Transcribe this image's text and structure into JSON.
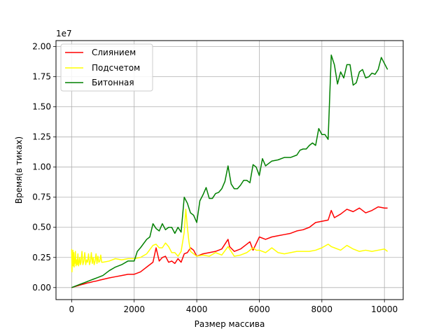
{
  "chart_data": {
    "type": "line",
    "title": "",
    "xlabel": "Размер массива",
    "ylabel": "Время(в тиках)",
    "y_offset_label": "1e7",
    "xlim": [
      -500,
      10600
    ],
    "ylim": [
      -1000000,
      20500000
    ],
    "x_ticks": [
      0,
      2000,
      4000,
      6000,
      8000,
      10000
    ],
    "x_tick_labels": [
      "0",
      "2000",
      "4000",
      "6000",
      "8000",
      "10000"
    ],
    "y_ticks": [
      0,
      2500000,
      5000000,
      7500000,
      10000000,
      12500000,
      15000000,
      17500000,
      20000000
    ],
    "y_tick_labels": [
      "0.00",
      "0.25",
      "0.50",
      "0.75",
      "1.00",
      "1.25",
      "1.50",
      "1.75",
      "2.00"
    ],
    "grid": true,
    "legend_position": "top-left",
    "series": [
      {
        "name": "Слиянием",
        "color": "#ff0000",
        "x": [
          0,
          100,
          200,
          300,
          400,
          500,
          600,
          700,
          800,
          900,
          1000,
          1200,
          1400,
          1600,
          1800,
          2000,
          2200,
          2400,
          2600,
          2700,
          2800,
          2900,
          3000,
          3100,
          3200,
          3300,
          3400,
          3500,
          3600,
          3700,
          3800,
          3900,
          4000,
          4200,
          4400,
          4600,
          4800,
          5000,
          5050,
          5200,
          5400,
          5600,
          5700,
          5800,
          6000,
          6200,
          6400,
          6600,
          6800,
          7000,
          7200,
          7400,
          7600,
          7800,
          8000,
          8200,
          8300,
          8400,
          8600,
          8800,
          9000,
          9200,
          9400,
          9600,
          9800,
          10000,
          10100
        ],
        "y": [
          0,
          80000,
          150000,
          230000,
          300000,
          380000,
          430000,
          500000,
          550000,
          620000,
          680000,
          800000,
          900000,
          1000000,
          1100000,
          1100000,
          1300000,
          1700000,
          2100000,
          3300000,
          2200000,
          2500000,
          2600000,
          2100000,
          2200000,
          2000000,
          2400000,
          2100000,
          2800000,
          2900000,
          3300000,
          3100000,
          2600000,
          2800000,
          2900000,
          3000000,
          3200000,
          4000000,
          3400000,
          3000000,
          3200000,
          3600000,
          3800000,
          3100000,
          4200000,
          4000000,
          4200000,
          4300000,
          4400000,
          4500000,
          4700000,
          4800000,
          5000000,
          5400000,
          5500000,
          5600000,
          6400000,
          5800000,
          6100000,
          6500000,
          6300000,
          6600000,
          6200000,
          6400000,
          6700000,
          6600000,
          6600000
        ]
      },
      {
        "name": "Подсчетом",
        "color": "#ffff00",
        "x": [
          0,
          10,
          20,
          30,
          40,
          50,
          60,
          70,
          80,
          90,
          100,
          120,
          140,
          160,
          180,
          200,
          220,
          240,
          260,
          280,
          300,
          330,
          360,
          390,
          420,
          450,
          480,
          510,
          540,
          570,
          600,
          630,
          660,
          690,
          720,
          750,
          780,
          810,
          840,
          870,
          900,
          930,
          960,
          1000,
          1200,
          1400,
          1600,
          1800,
          2000,
          2200,
          2400,
          2600,
          2700,
          2800,
          2900,
          3000,
          3100,
          3200,
          3300,
          3400,
          3500,
          3600,
          3650,
          3700,
          3750,
          3800,
          4000,
          4200,
          4400,
          4600,
          4800,
          5000,
          5200,
          5400,
          5600,
          5800,
          5900,
          6000,
          6200,
          6400,
          6600,
          6800,
          7000,
          7200,
          7400,
          7600,
          7800,
          8000,
          8200,
          8300,
          8400,
          8600,
          8800,
          9000,
          9200,
          9400,
          9600,
          9800,
          10000,
          10100
        ],
        "y": [
          3200000,
          1300000,
          2100000,
          1900000,
          3100000,
          1800000,
          2000000,
          2900000,
          1700000,
          2200000,
          2000000,
          3000000,
          1800000,
          2300000,
          1900000,
          2800000,
          1800000,
          2100000,
          2500000,
          1900000,
          2100000,
          3000000,
          1900000,
          2200000,
          2900000,
          1900000,
          2300000,
          2100000,
          2800000,
          1900000,
          2200000,
          2900000,
          2000000,
          2500000,
          1900000,
          2200000,
          2800000,
          2000000,
          2600000,
          2100000,
          2200000,
          2700000,
          2100000,
          2100000,
          2200000,
          2400000,
          2300000,
          2400000,
          2400000,
          2500000,
          2800000,
          3500000,
          3600000,
          3300000,
          3300000,
          3700000,
          3400000,
          2900000,
          2900000,
          2600000,
          3000000,
          4600000,
          6500000,
          5000000,
          3800000,
          3000000,
          2600000,
          2700000,
          2600000,
          2900000,
          2700000,
          3400000,
          2600000,
          2700000,
          2900000,
          3300000,
          3100000,
          3100000,
          2900000,
          3300000,
          2900000,
          2800000,
          2900000,
          3000000,
          3000000,
          3000000,
          3100000,
          3300000,
          3600000,
          3400000,
          3300000,
          3100000,
          3500000,
          3200000,
          3000000,
          3100000,
          3000000,
          3100000,
          3200000,
          3000000
        ]
      },
      {
        "name": "Битонная",
        "color": "#008000",
        "x": [
          0,
          100,
          200,
          300,
          400,
          500,
          600,
          700,
          800,
          900,
          1000,
          1200,
          1400,
          1600,
          1800,
          2000,
          2100,
          2200,
          2400,
          2500,
          2600,
          2700,
          2800,
          2900,
          3000,
          3100,
          3200,
          3300,
          3400,
          3500,
          3600,
          3700,
          3800,
          3900,
          4000,
          4100,
          4200,
          4300,
          4400,
          4500,
          4600,
          4700,
          4800,
          4900,
          5000,
          5100,
          5200,
          5300,
          5400,
          5500,
          5600,
          5700,
          5800,
          5900,
          6000,
          6100,
          6200,
          6400,
          6600,
          6800,
          7000,
          7200,
          7300,
          7400,
          7500,
          7600,
          7700,
          7800,
          7900,
          8000,
          8100,
          8200,
          8300,
          8400,
          8500,
          8600,
          8700,
          8800,
          8900,
          9000,
          9100,
          9200,
          9300,
          9400,
          9500,
          9600,
          9700,
          9800,
          9900,
          10000,
          10100
        ],
        "y": [
          0,
          100000,
          200000,
          300000,
          400000,
          500000,
          600000,
          700000,
          800000,
          900000,
          1000000,
          1400000,
          1700000,
          1900000,
          2200000,
          2200000,
          3000000,
          3300000,
          4000000,
          4200000,
          5300000,
          4900000,
          4700000,
          5300000,
          4800000,
          5000000,
          5000000,
          4500000,
          5000000,
          4600000,
          7500000,
          7000000,
          6200000,
          6000000,
          5400000,
          7200000,
          7700000,
          8300000,
          7400000,
          7400000,
          7800000,
          7900000,
          8200000,
          8800000,
          10100000,
          8600000,
          8200000,
          8200000,
          8500000,
          8900000,
          8900000,
          8700000,
          10200000,
          10000000,
          9300000,
          10700000,
          10100000,
          10500000,
          10600000,
          10800000,
          10800000,
          11000000,
          11400000,
          11500000,
          11500000,
          11800000,
          12000000,
          11800000,
          13200000,
          12700000,
          12700000,
          12300000,
          19300000,
          18500000,
          16900000,
          17900000,
          17400000,
          18500000,
          18500000,
          16800000,
          17000000,
          17900000,
          18100000,
          17400000,
          17500000,
          17800000,
          17700000,
          18100000,
          19100000,
          18600000,
          18100000
        ]
      }
    ]
  }
}
